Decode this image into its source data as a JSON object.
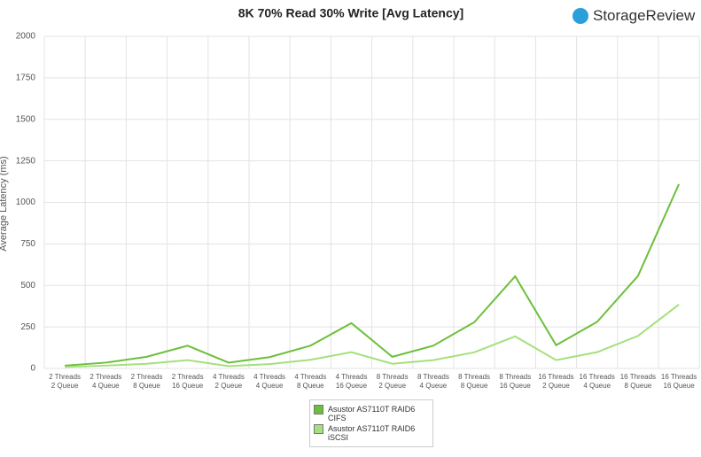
{
  "logo": "StorageReview",
  "chart_data": {
    "type": "line",
    "title": "8K 70% Read 30% Write [Avg Latency]",
    "y_label": "Average Latency (ms)",
    "categories": [
      "2 Threads\n2 Queue",
      "2 Threads\n4 Queue",
      "2 Threads\n8 Queue",
      "2 Threads\n16 Queue",
      "4 Threads\n2 Queue",
      "4 Threads\n4 Queue",
      "4 Threads\n8 Queue",
      "4 Threads\n16 Queue",
      "8 Threads\n2 Queue",
      "8 Threads\n4 Queue",
      "8 Threads\n8 Queue",
      "8 Threads\n16 Queue",
      "16 Threads\n2 Queue",
      "16 Threads\n4 Queue",
      "16 Threads\n8 Queue",
      "16 Threads\n16 Queue"
    ],
    "series": [
      {
        "name": "Asustor AS7110T RAID6\nCIFS",
        "color": "#6cbf3c",
        "values": [
          17,
          35,
          70,
          137,
          35,
          68,
          137,
          273,
          70,
          137,
          278,
          555,
          140,
          280,
          557,
          1110
        ]
      },
      {
        "name": "Asustor AS7110T RAID6\niSCSI",
        "color": "#a4e07c",
        "values": [
          9,
          17,
          28,
          50,
          14,
          26,
          52,
          98,
          28,
          50,
          97,
          193,
          50,
          98,
          196,
          385
        ]
      }
    ],
    "ylim": [
      0,
      2000
    ],
    "yticks": [
      0,
      250,
      500,
      750,
      1000,
      1250,
      1500,
      1750,
      2000
    ],
    "grid": true
  }
}
